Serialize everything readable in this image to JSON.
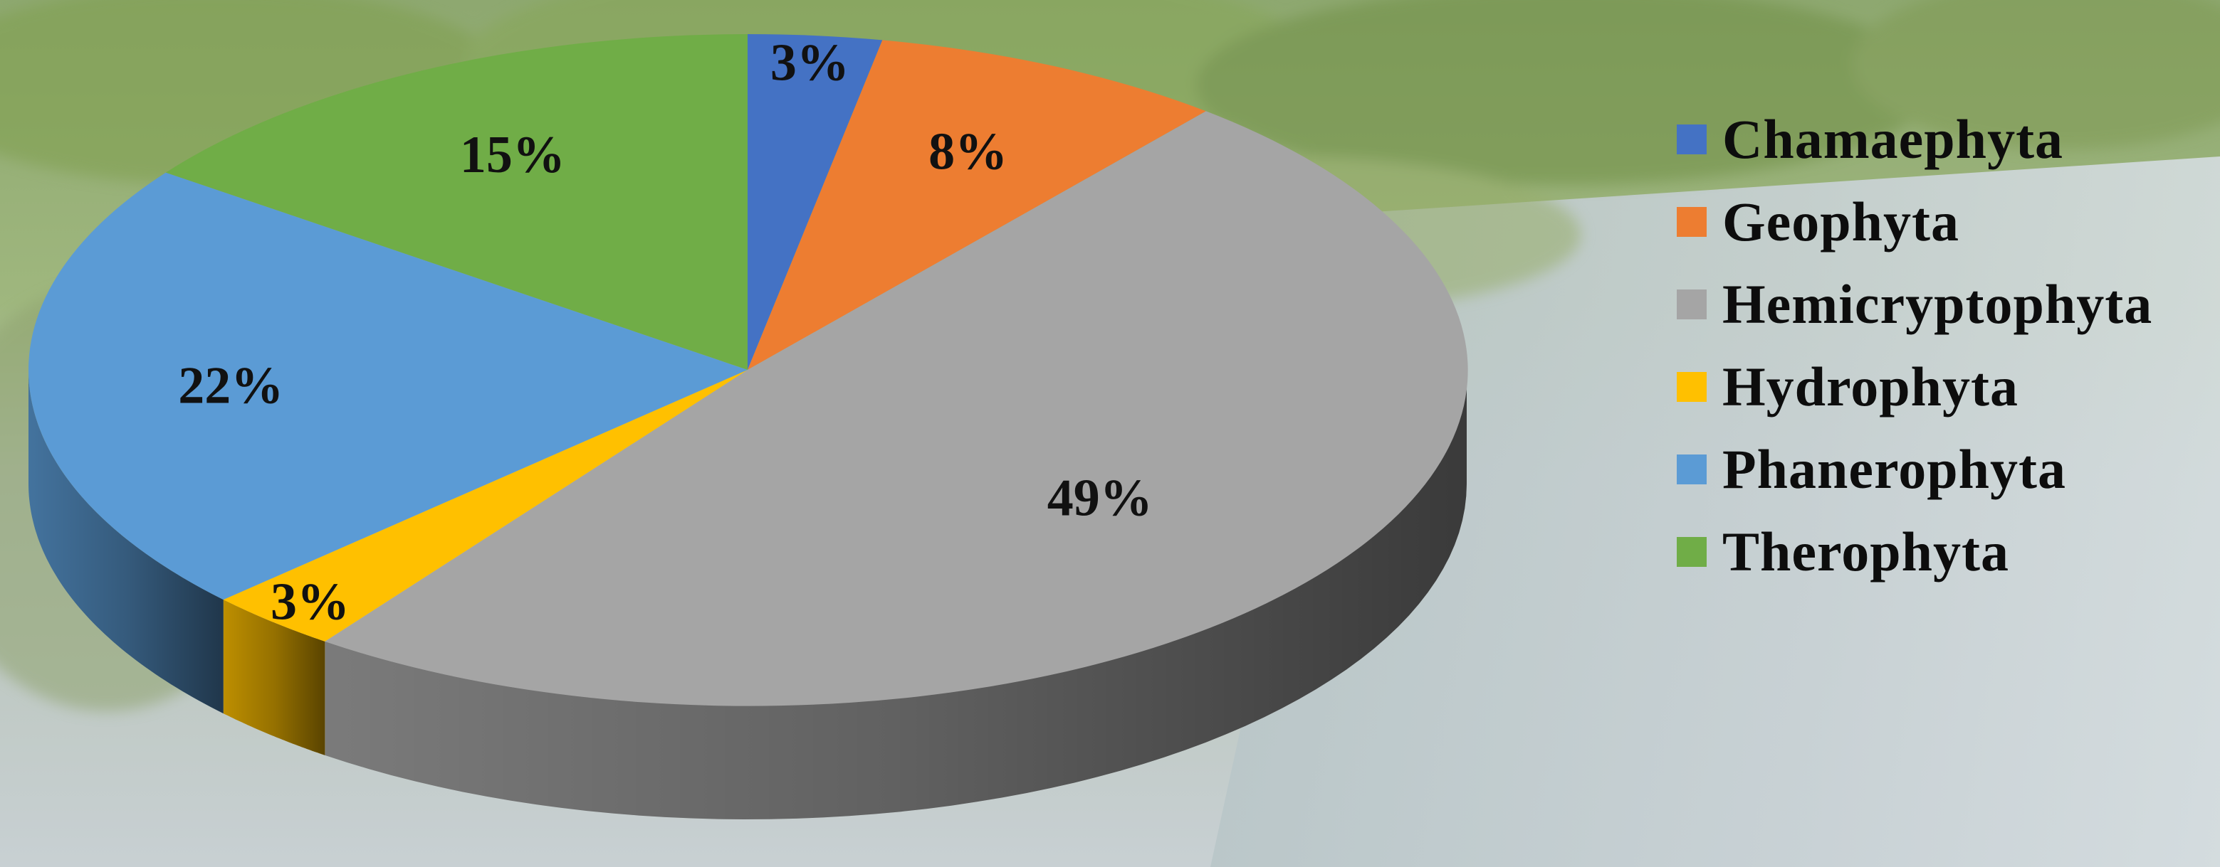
{
  "chart_data": {
    "type": "pie",
    "style": "3d-exploded-depth",
    "categories": [
      "Chamaephyta",
      "Geophyta",
      "Hemicryptophyta",
      "Hydrophyta",
      "Phanerophyta",
      "Therophyta"
    ],
    "values": [
      3,
      8,
      49,
      3,
      22,
      15
    ],
    "data_labels": [
      "3%",
      "8%",
      "49%",
      "3%",
      "22%",
      "15%"
    ],
    "colors": [
      "#4472C4",
      "#ED7D31",
      "#A5A5A5",
      "#FFC000",
      "#5B9BD5",
      "#70AD47"
    ],
    "title": "",
    "legend_position": "right",
    "background": "river with riparian vegetation photo"
  }
}
